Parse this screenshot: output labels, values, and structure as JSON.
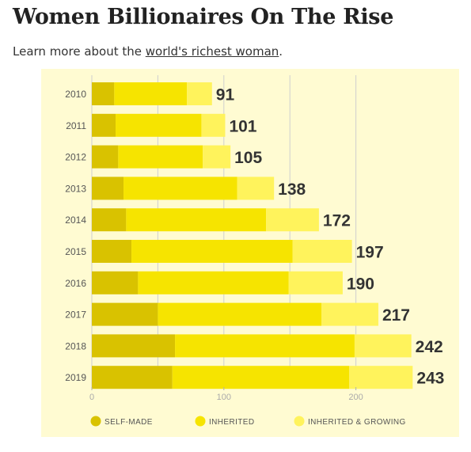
{
  "header": {
    "title": "Women Billionaires On The Rise",
    "subtitle_prefix": "Learn more about the ",
    "subtitle_link": "world's richest woman",
    "subtitle_suffix": "."
  },
  "colors": {
    "panel_bg": "#fffbd2",
    "grid": "#cfcfcf",
    "self_made": "#d9c200",
    "inherited": "#f6e400",
    "inherited_growing": "#fff35c",
    "total_label": "#333333",
    "tick_label": "#555555",
    "axis_tick": "#b0b0b0"
  },
  "chart_data": {
    "type": "bar",
    "orientation": "horizontal",
    "stacked": true,
    "title": "Women Billionaires On The Rise",
    "categories": [
      "2010",
      "2011",
      "2012",
      "2013",
      "2014",
      "2015",
      "2016",
      "2017",
      "2018",
      "2019"
    ],
    "series": [
      {
        "name": "SELF-MADE",
        "values": [
          17,
          18,
          20,
          24,
          26,
          30,
          35,
          50,
          63,
          61
        ]
      },
      {
        "name": "INHERITED",
        "values": [
          55,
          65,
          64,
          86,
          106,
          122,
          114,
          124,
          136,
          134
        ]
      },
      {
        "name": "INHERITED & GROWING",
        "values": [
          19,
          18,
          21,
          28,
          40,
          45,
          41,
          43,
          43,
          48
        ]
      }
    ],
    "totals": [
      91,
      101,
      105,
      138,
      172,
      197,
      190,
      217,
      242,
      243
    ],
    "x_ticks": [
      0,
      100,
      200
    ],
    "xlim": [
      0,
      250
    ],
    "grid": true,
    "legend_position": "bottom"
  }
}
